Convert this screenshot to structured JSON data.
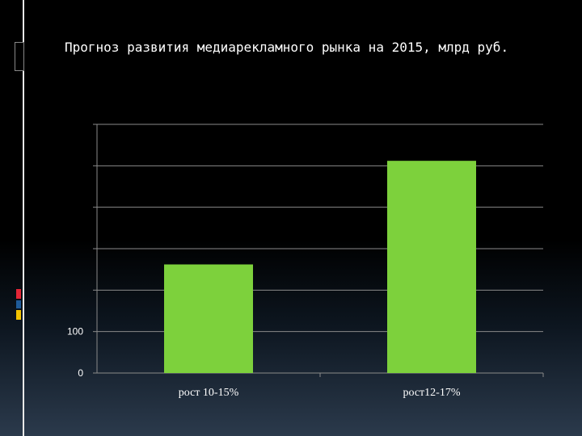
{
  "slide": {
    "title": "Прогноз развития медиарекламного рынка на 2015, млрд руб."
  },
  "colors": {
    "background": "#000000",
    "bar": "#7dd13c",
    "gridline": "#8a8a8a",
    "text": "#ffffff",
    "accent_red": "#e32636",
    "accent_blue": "#1f5b99",
    "accent_yellow": "#f2c200"
  },
  "chart_data": {
    "type": "bar",
    "title": "",
    "xlabel": "",
    "ylabel": "",
    "categories": [
      "рост 10-15%",
      "рост12-17%"
    ],
    "values": [
      262,
      512
    ],
    "ylim": [
      0,
      600
    ],
    "yticks": [
      0,
      100,
      200,
      300,
      400,
      500,
      600
    ],
    "ytick_labels_visible": [
      "0",
      "100"
    ],
    "grid": true,
    "legend": "none"
  }
}
